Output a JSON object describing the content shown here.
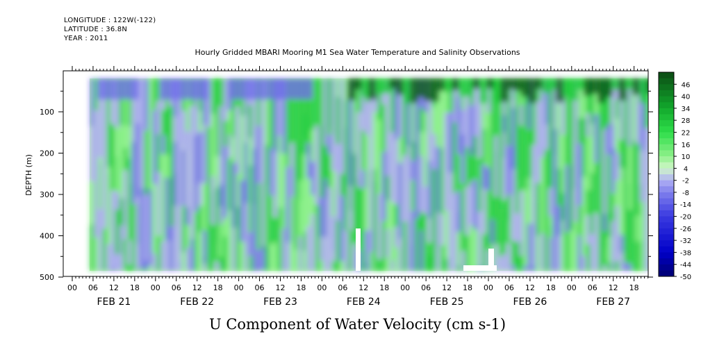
{
  "header": {
    "longitude": "LONGITUDE : 122W(-122)",
    "latitude": "LATITUDE : 36.8N",
    "year": "YEAR : 2011"
  },
  "chart_data": {
    "type": "heatmap",
    "title": "Hourly Gridded MBARI Mooring M1 Sea Water Temperature and Salinity Observations",
    "xlabel": "U Component of Water Velocity (cm s-1)",
    "ylabel": "DEPTH (m)",
    "x_hour_ticks": [
      "00",
      "06",
      "12",
      "18",
      "00",
      "06",
      "12",
      "18",
      "00",
      "06",
      "12",
      "18",
      "00",
      "06",
      "12",
      "18",
      "00",
      "06",
      "12",
      "18",
      "00",
      "06",
      "12",
      "18",
      "00",
      "06",
      "12",
      "18"
    ],
    "x_day_labels": [
      "FEB 21",
      "FEB 22",
      "FEB 23",
      "FEB 24",
      "FEB 25",
      "FEB 26",
      "FEB 27"
    ],
    "y_ticks": [
      100,
      200,
      300,
      400,
      500
    ],
    "ylim": [
      500,
      20
    ],
    "colorbar_ticks": [
      46,
      40,
      34,
      28,
      22,
      16,
      10,
      4,
      -2,
      -8,
      -14,
      -20,
      -26,
      -32,
      -38,
      -44,
      -50
    ],
    "colorbar_range": [
      -50,
      52
    ],
    "colors": {
      "positive_strong": "#0d5a1a",
      "positive": "#1bcc3a",
      "positive_light": "#7fef7f",
      "near_zero": "#c8f5c0",
      "negative_light": "#a8a8f0",
      "negative": "#7070e8",
      "negative_strong": "#0000a0"
    },
    "grid": false
  }
}
